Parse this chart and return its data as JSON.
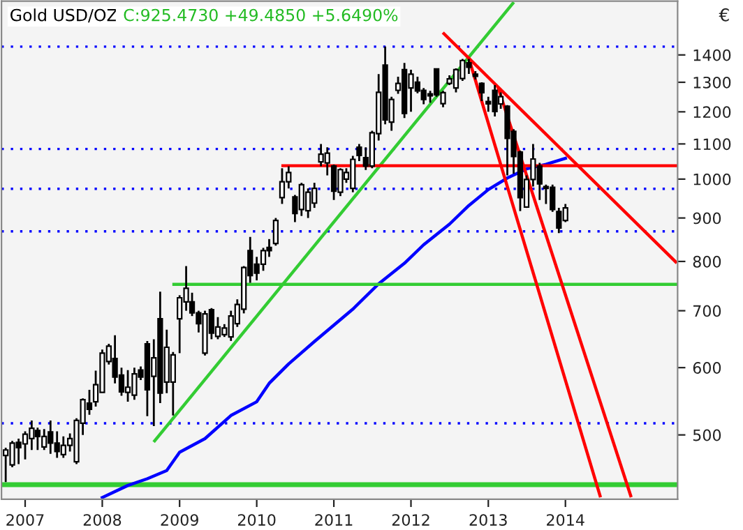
{
  "chart_data": {
    "type": "candlestick",
    "title": "Gold USD/OZ",
    "subtitle": "C:925.4730 +49.4850 +5.6490%",
    "annotations": [
      "€"
    ],
    "x": [
      "2006-10",
      "2006-11",
      "2006-12",
      "2007-01",
      "2007-02",
      "2007-03",
      "2007-04",
      "2007-05",
      "2007-06",
      "2007-07",
      "2007-08",
      "2007-09",
      "2007-10",
      "2007-11",
      "2007-12",
      "2008-01",
      "2008-02",
      "2008-03",
      "2008-04",
      "2008-05",
      "2008-06",
      "2008-07",
      "2008-08",
      "2008-09",
      "2008-10",
      "2008-11",
      "2008-12",
      "2009-01",
      "2009-02",
      "2009-03",
      "2009-04",
      "2009-05",
      "2009-06",
      "2009-07",
      "2009-08",
      "2009-09",
      "2009-10",
      "2009-11",
      "2009-12",
      "2010-01",
      "2010-02",
      "2010-03",
      "2010-04",
      "2010-05",
      "2010-06",
      "2010-07",
      "2010-08",
      "2010-09",
      "2010-10",
      "2010-11",
      "2010-12",
      "2011-01",
      "2011-02",
      "2011-03",
      "2011-04",
      "2011-05",
      "2011-06",
      "2011-07",
      "2011-08",
      "2011-09",
      "2011-10",
      "2011-11",
      "2011-12",
      "2012-01",
      "2012-02",
      "2012-03",
      "2012-04",
      "2012-05",
      "2012-06",
      "2012-07",
      "2012-08",
      "2012-09",
      "2012-10",
      "2012-11",
      "2012-12",
      "2013-01",
      "2013-02",
      "2013-03",
      "2013-04",
      "2013-05",
      "2013-06",
      "2013-07",
      "2013-08",
      "2013-09",
      "2013-10",
      "2013-11",
      "2013-12",
      "2014-01"
    ],
    "ohlc": [
      [
        473,
        483,
        440,
        480
      ],
      [
        461,
        492,
        458,
        489
      ],
      [
        490,
        495,
        462,
        483
      ],
      [
        488,
        505,
        468,
        501
      ],
      [
        495,
        520,
        480,
        509
      ],
      [
        506,
        510,
        480,
        498
      ],
      [
        484,
        508,
        480,
        498
      ],
      [
        504,
        520,
        475,
        489
      ],
      [
        489,
        505,
        470,
        478
      ],
      [
        474,
        498,
        470,
        486
      ],
      [
        486,
        502,
        478,
        495
      ],
      [
        465,
        523,
        462,
        520
      ],
      [
        516,
        552,
        500,
        550
      ],
      [
        545,
        565,
        528,
        536
      ],
      [
        547,
        595,
        540,
        573
      ],
      [
        561,
        630,
        561,
        624
      ],
      [
        610,
        640,
        605,
        636
      ],
      [
        615,
        655,
        575,
        585
      ],
      [
        588,
        600,
        556,
        562
      ],
      [
        561,
        596,
        547,
        569
      ],
      [
        557,
        600,
        550,
        590
      ],
      [
        596,
        602,
        580,
        585
      ],
      [
        640,
        645,
        526,
        565
      ],
      [
        586,
        648,
        512,
        616
      ],
      [
        685,
        737,
        545,
        560
      ],
      [
        577,
        665,
        560,
        634
      ],
      [
        577,
        626,
        527,
        621
      ],
      [
        685,
        730,
        624,
        725
      ],
      [
        717,
        790,
        700,
        744
      ],
      [
        717,
        735,
        690,
        696
      ],
      [
        696,
        700,
        660,
        676
      ],
      [
        624,
        700,
        620,
        694
      ],
      [
        702,
        705,
        648,
        659
      ],
      [
        653,
        688,
        648,
        670
      ],
      [
        656,
        675,
        652,
        668
      ],
      [
        652,
        700,
        645,
        690
      ],
      [
        676,
        722,
        670,
        712
      ],
      [
        703,
        790,
        695,
        787
      ],
      [
        824,
        855,
        755,
        770
      ],
      [
        794,
        810,
        760,
        775
      ],
      [
        794,
        830,
        780,
        824
      ],
      [
        831,
        850,
        810,
        824
      ],
      [
        840,
        900,
        835,
        894
      ],
      [
        951,
        1030,
        935,
        993
      ],
      [
        993,
        1035,
        975,
        1018
      ],
      [
        953,
        958,
        890,
        911
      ],
      [
        921,
        990,
        905,
        985
      ],
      [
        918,
        975,
        900,
        965
      ],
      [
        937,
        990,
        925,
        975
      ],
      [
        1048,
        1100,
        1035,
        1070
      ],
      [
        1045,
        1090,
        1010,
        1073
      ],
      [
        1036,
        1040,
        945,
        968
      ],
      [
        965,
        1030,
        955,
        1026
      ],
      [
        1000,
        1030,
        990,
        1018
      ],
      [
        975,
        1065,
        965,
        1055
      ],
      [
        1090,
        1100,
        1050,
        1066
      ],
      [
        1060,
        1090,
        1025,
        1036
      ],
      [
        1036,
        1140,
        1030,
        1134
      ],
      [
        1131,
        1329,
        1110,
        1265
      ],
      [
        1362,
        1432,
        1160,
        1174
      ],
      [
        1167,
        1250,
        1140,
        1241
      ],
      [
        1272,
        1320,
        1260,
        1296
      ],
      [
        1345,
        1370,
        1180,
        1195
      ],
      [
        1280,
        1345,
        1200,
        1329
      ],
      [
        1300,
        1320,
        1262,
        1270
      ],
      [
        1272,
        1280,
        1225,
        1241
      ],
      [
        1260,
        1270,
        1230,
        1253
      ],
      [
        1348,
        1350,
        1250,
        1257
      ],
      [
        1227,
        1270,
        1215,
        1264
      ],
      [
        1296,
        1325,
        1290,
        1312
      ],
      [
        1280,
        1350,
        1265,
        1345
      ],
      [
        1313,
        1385,
        1305,
        1379
      ],
      [
        1370,
        1385,
        1330,
        1354
      ],
      [
        1329,
        1340,
        1310,
        1321
      ],
      [
        1296,
        1300,
        1235,
        1264
      ],
      [
        1234,
        1250,
        1200,
        1226
      ],
      [
        1272,
        1290,
        1185,
        1201
      ],
      [
        1226,
        1265,
        1210,
        1250
      ],
      [
        1218,
        1222,
        1010,
        1117
      ],
      [
        1138,
        1145,
        1015,
        1063
      ],
      [
        1076,
        1080,
        917,
        951
      ],
      [
        927,
        1010,
        925,
        999
      ],
      [
        999,
        1100,
        980,
        1056
      ],
      [
        1036,
        1045,
        945,
        987
      ],
      [
        980,
        985,
        935,
        975
      ],
      [
        978,
        985,
        915,
        921
      ],
      [
        916,
        925,
        864,
        876
      ],
      [
        894,
        935,
        890,
        925
      ]
    ],
    "series": [
      {
        "type": "line",
        "color": "#0000ff",
        "x": [
          "2008-01",
          "2008-05",
          "2008-08",
          "2008-11",
          "2009-01",
          "2009-05",
          "2009-09",
          "2010-01",
          "2010-03",
          "2010-06",
          "2010-10",
          "2011-04",
          "2011-08",
          "2011-12",
          "2012-03",
          "2012-07",
          "2012-10",
          "2013-01",
          "2013-04",
          "2013-07",
          "2013-10",
          "2014-01"
        ],
        "values": [
          422,
          436,
          444,
          454,
          477,
          495,
          527,
          547,
          575,
          606,
          644,
          703,
          753,
          796,
          837,
          885,
          931,
          972,
          1003,
          1028,
          1041,
          1058
        ]
      },
      {
        "type": "line",
        "color": "#33cc33",
        "x": [
          "2008-09-05",
          "2013-04-27"
        ],
        "values": [
          492,
          1610
        ]
      },
      {
        "type": "line",
        "color": "#33cc33",
        "x": [
          "2008-12-05",
          "2015-06-16"
        ],
        "values": [
          752,
          752
        ]
      },
      {
        "type": "line",
        "color": "#ff0000",
        "x": [
          "2010-05-05",
          "2015-06-16"
        ],
        "values": [
          1037,
          1037
        ]
      },
      {
        "type": "line",
        "color": "#ff0000",
        "x": [
          "2012-06-05",
          "2015-06-07"
        ],
        "values": [
          1483,
          799
        ]
      },
      {
        "type": "line",
        "color": "#ff0000",
        "x": [
          "2012-10-01",
          "2014-06-14"
        ],
        "values": [
          1387,
          424
        ]
      },
      {
        "type": "line",
        "color": "#ff0000",
        "x": [
          "2013-02-17",
          "2014-11-06"
        ],
        "values": [
          1280,
          424
        ]
      }
    ],
    "ref_lines": [
      {
        "axis": "y",
        "value": 437,
        "color": "#33cc33",
        "line_style": "solid"
      },
      {
        "axis": "y",
        "value": 1432,
        "color": "#0000ff",
        "line_style": "dotted"
      },
      {
        "axis": "y",
        "value": 1085,
        "color": "#0000ff",
        "line_style": "dotted"
      },
      {
        "axis": "y",
        "value": 974,
        "color": "#0000ff",
        "line_style": "dotted"
      },
      {
        "axis": "y",
        "value": 868,
        "color": "#0000ff",
        "line_style": "dotted"
      },
      {
        "axis": "y",
        "value": 516,
        "color": "#0000ff",
        "line_style": "dotted"
      }
    ],
    "log": "y",
    "xlim": [
      "2006-09-11",
      "2015-06-16"
    ],
    "xticks": [
      "2007",
      "2008",
      "2009",
      "2010",
      "2011",
      "2012",
      "2013",
      "2014"
    ],
    "ylim": [
      420,
      1620
    ],
    "yticks": [
      500,
      600,
      700,
      800,
      900,
      1000,
      1100,
      1200,
      1300,
      1400
    ],
    "grid": false,
    "legend": false
  }
}
